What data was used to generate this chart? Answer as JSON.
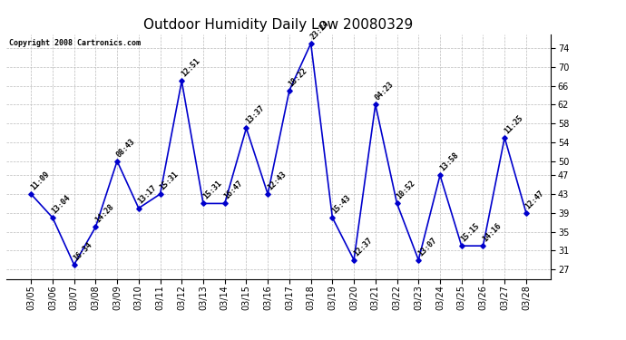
{
  "title": "Outdoor Humidity Daily Low 20080329",
  "copyright_text": "Copyright 2008 Cartronics.com",
  "dates": [
    "03/05",
    "03/06",
    "03/07",
    "03/08",
    "03/09",
    "03/10",
    "03/11",
    "03/12",
    "03/13",
    "03/14",
    "03/15",
    "03/16",
    "03/17",
    "03/18",
    "03/19",
    "03/20",
    "03/21",
    "03/22",
    "03/23",
    "03/24",
    "03/25",
    "03/26",
    "03/27",
    "03/28"
  ],
  "values": [
    43,
    38,
    28,
    36,
    50,
    40,
    43,
    67,
    41,
    41,
    57,
    43,
    65,
    75,
    38,
    29,
    62,
    41,
    29,
    47,
    32,
    32,
    55,
    39
  ],
  "labels": [
    "11:09",
    "13:04",
    "16:34",
    "14:28",
    "08:43",
    "13:17",
    "15:31",
    "12:51",
    "15:31",
    "16:47",
    "13:37",
    "12:43",
    "18:22",
    "23:24",
    "15:43",
    "12:37",
    "04:23",
    "10:52",
    "13:07",
    "13:58",
    "15:15",
    "14:16",
    "11:25",
    "12:47"
  ],
  "line_color": "#0000cc",
  "marker_color": "#0000cc",
  "background_color": "#ffffff",
  "grid_color": "#bbbbbb",
  "ylim": [
    25,
    77
  ],
  "yticks": [
    27,
    31,
    35,
    39,
    43,
    47,
    50,
    54,
    58,
    62,
    66,
    70,
    74
  ],
  "title_fontsize": 11,
  "label_fontsize": 6,
  "tick_fontsize": 7,
  "figsize": [
    6.9,
    3.75
  ],
  "dpi": 100
}
